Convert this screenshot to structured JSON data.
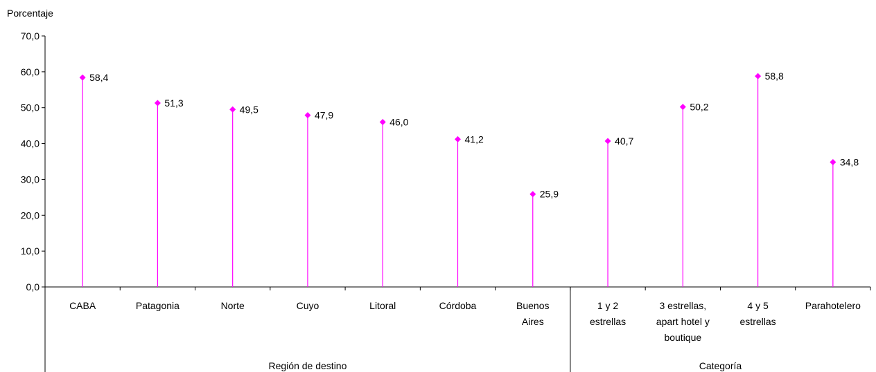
{
  "chart_data": {
    "type": "line",
    "ylabel": "Porcentaje",
    "ylim": [
      0,
      70
    ],
    "yticks": [
      "0,0",
      "10,0",
      "20,0",
      "30,0",
      "40,0",
      "50,0",
      "60,0",
      "70,0"
    ],
    "grid": false,
    "marker_color": "#ff00ff",
    "axis_color": "#000000",
    "categories": [
      [
        "CABA"
      ],
      [
        "Patagonia"
      ],
      [
        "Norte"
      ],
      [
        "Cuyo"
      ],
      [
        "Litoral"
      ],
      [
        "Córdoba"
      ],
      [
        "Buenos",
        "Aires"
      ],
      [
        "1 y 2",
        "estrellas"
      ],
      [
        "3 estrellas,",
        "apart hotel y",
        "boutique"
      ],
      [
        "4 y 5",
        "estrellas"
      ],
      [
        "Parahotelero"
      ]
    ],
    "values": [
      58.4,
      51.3,
      49.5,
      47.9,
      46.0,
      41.2,
      25.9,
      40.7,
      50.2,
      58.8,
      34.8
    ],
    "value_labels": [
      "58,4",
      "51,3",
      "49,5",
      "47,9",
      "46,0",
      "41,2",
      "25,9",
      "40,7",
      "50,2",
      "58,8",
      "34,8"
    ],
    "groups": [
      {
        "label": "Región de destino",
        "count": 7
      },
      {
        "label": "Categoría",
        "count": 4
      }
    ]
  }
}
